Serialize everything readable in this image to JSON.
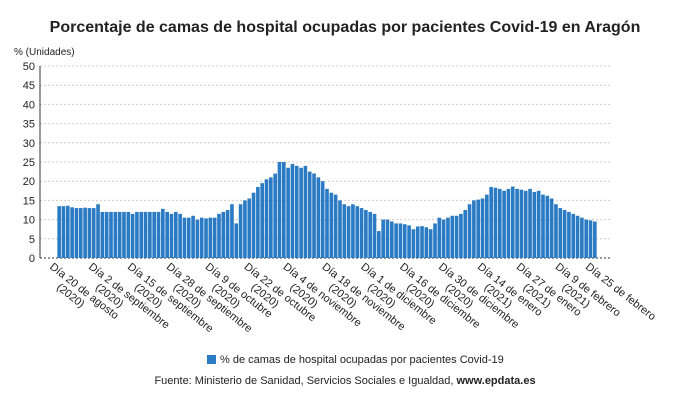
{
  "chart_data": {
    "type": "bar",
    "title": "Porcentaje de camas de hospital ocupadas por pacientes Covid-19 en Aragón",
    "y_label": "% (Unidades)",
    "source": "Fuente: Ministerio de Sanidad, Servicios Sociales e Igualdad, ",
    "source_link": "www.epdata.es",
    "ylim": [
      0,
      50
    ],
    "yticks": [
      0,
      5,
      10,
      15,
      20,
      25,
      30,
      35,
      40,
      45,
      50
    ],
    "grid": true,
    "categories": [
      "Día 20 de agosto\n(2020)",
      null,
      null,
      null,
      null,
      null,
      null,
      null,
      null,
      "Día 2 de septiembre\n(2020)",
      null,
      null,
      null,
      null,
      null,
      null,
      null,
      null,
      "Día 15 de septiembre\n(2020)",
      null,
      null,
      null,
      null,
      null,
      null,
      null,
      null,
      "Día 28 de septiembre\n(2020)",
      null,
      null,
      null,
      null,
      null,
      null,
      null,
      null,
      "Día 9 de octubre\n(2020)",
      null,
      null,
      null,
      null,
      null,
      null,
      null,
      null,
      "Día 22 de octubre\n(2020)",
      null,
      null,
      null,
      null,
      null,
      null,
      null,
      null,
      "Día 4 de noviembre\n(2020)",
      null,
      null,
      null,
      null,
      null,
      null,
      null,
      null,
      "Día 18 de noviembre\n(2020)",
      null,
      null,
      null,
      null,
      null,
      null,
      null,
      null,
      "Día 1 de diciembre\n(2020)",
      null,
      null,
      null,
      null,
      null,
      null,
      null,
      null,
      "Día 16 de diciembre\n(2020)",
      null,
      null,
      null,
      null,
      null,
      null,
      null,
      null,
      "Día 30 de diciembre\n(2020)",
      null,
      null,
      null,
      null,
      null,
      null,
      null,
      null,
      "Día 14 de enero\n(2021)",
      null,
      null,
      null,
      null,
      null,
      null,
      null,
      null,
      "Día 27 de enero\n(2021)",
      null,
      null,
      null,
      null,
      null,
      null,
      null,
      null,
      "Día 9 de febrero\n(2021)",
      null,
      null,
      null,
      null,
      null,
      null,
      "Día 25 de febrero"
    ],
    "series": [
      {
        "name": "% de camas de hospital ocupadas por pacientes Covid-19",
        "color": "#2b7bc4",
        "values": [
          13.5,
          13.5,
          13.6,
          13.2,
          13.0,
          13.0,
          13.1,
          13.0,
          13.0,
          14.0,
          12,
          12,
          12,
          12,
          12,
          12,
          12,
          11.5,
          12,
          12,
          12,
          12,
          12,
          12,
          12.8,
          12,
          11.5,
          12,
          11.5,
          10.5,
          10.5,
          11,
          10,
          10.5,
          10.3,
          10.5,
          10.5,
          11.5,
          12,
          12.5,
          14,
          9,
          14,
          15,
          15.5,
          17,
          18.5,
          19.5,
          20.5,
          21,
          22,
          25,
          25,
          23.5,
          24.5,
          24,
          23.5,
          24,
          22.5,
          22,
          21,
          20,
          18,
          17,
          16.5,
          15,
          14,
          13.5,
          14,
          13.5,
          13,
          12.5,
          12,
          11.5,
          7,
          10,
          10,
          9.5,
          9,
          9,
          8.8,
          8.5,
          7.5,
          8.2,
          8.3,
          8,
          7.5,
          9,
          10.5,
          10,
          10.5,
          11,
          11,
          11.5,
          12.5,
          14,
          15,
          15.2,
          15.5,
          16.5,
          18.5,
          18.3,
          18,
          17.5,
          18,
          18.6,
          18,
          17.8,
          17.5,
          18,
          17.2,
          17.5,
          16.5,
          16.2,
          15.5,
          14,
          13,
          12.5,
          12,
          11.5,
          11,
          10.5,
          10,
          9.8,
          9.5
        ]
      }
    ]
  }
}
